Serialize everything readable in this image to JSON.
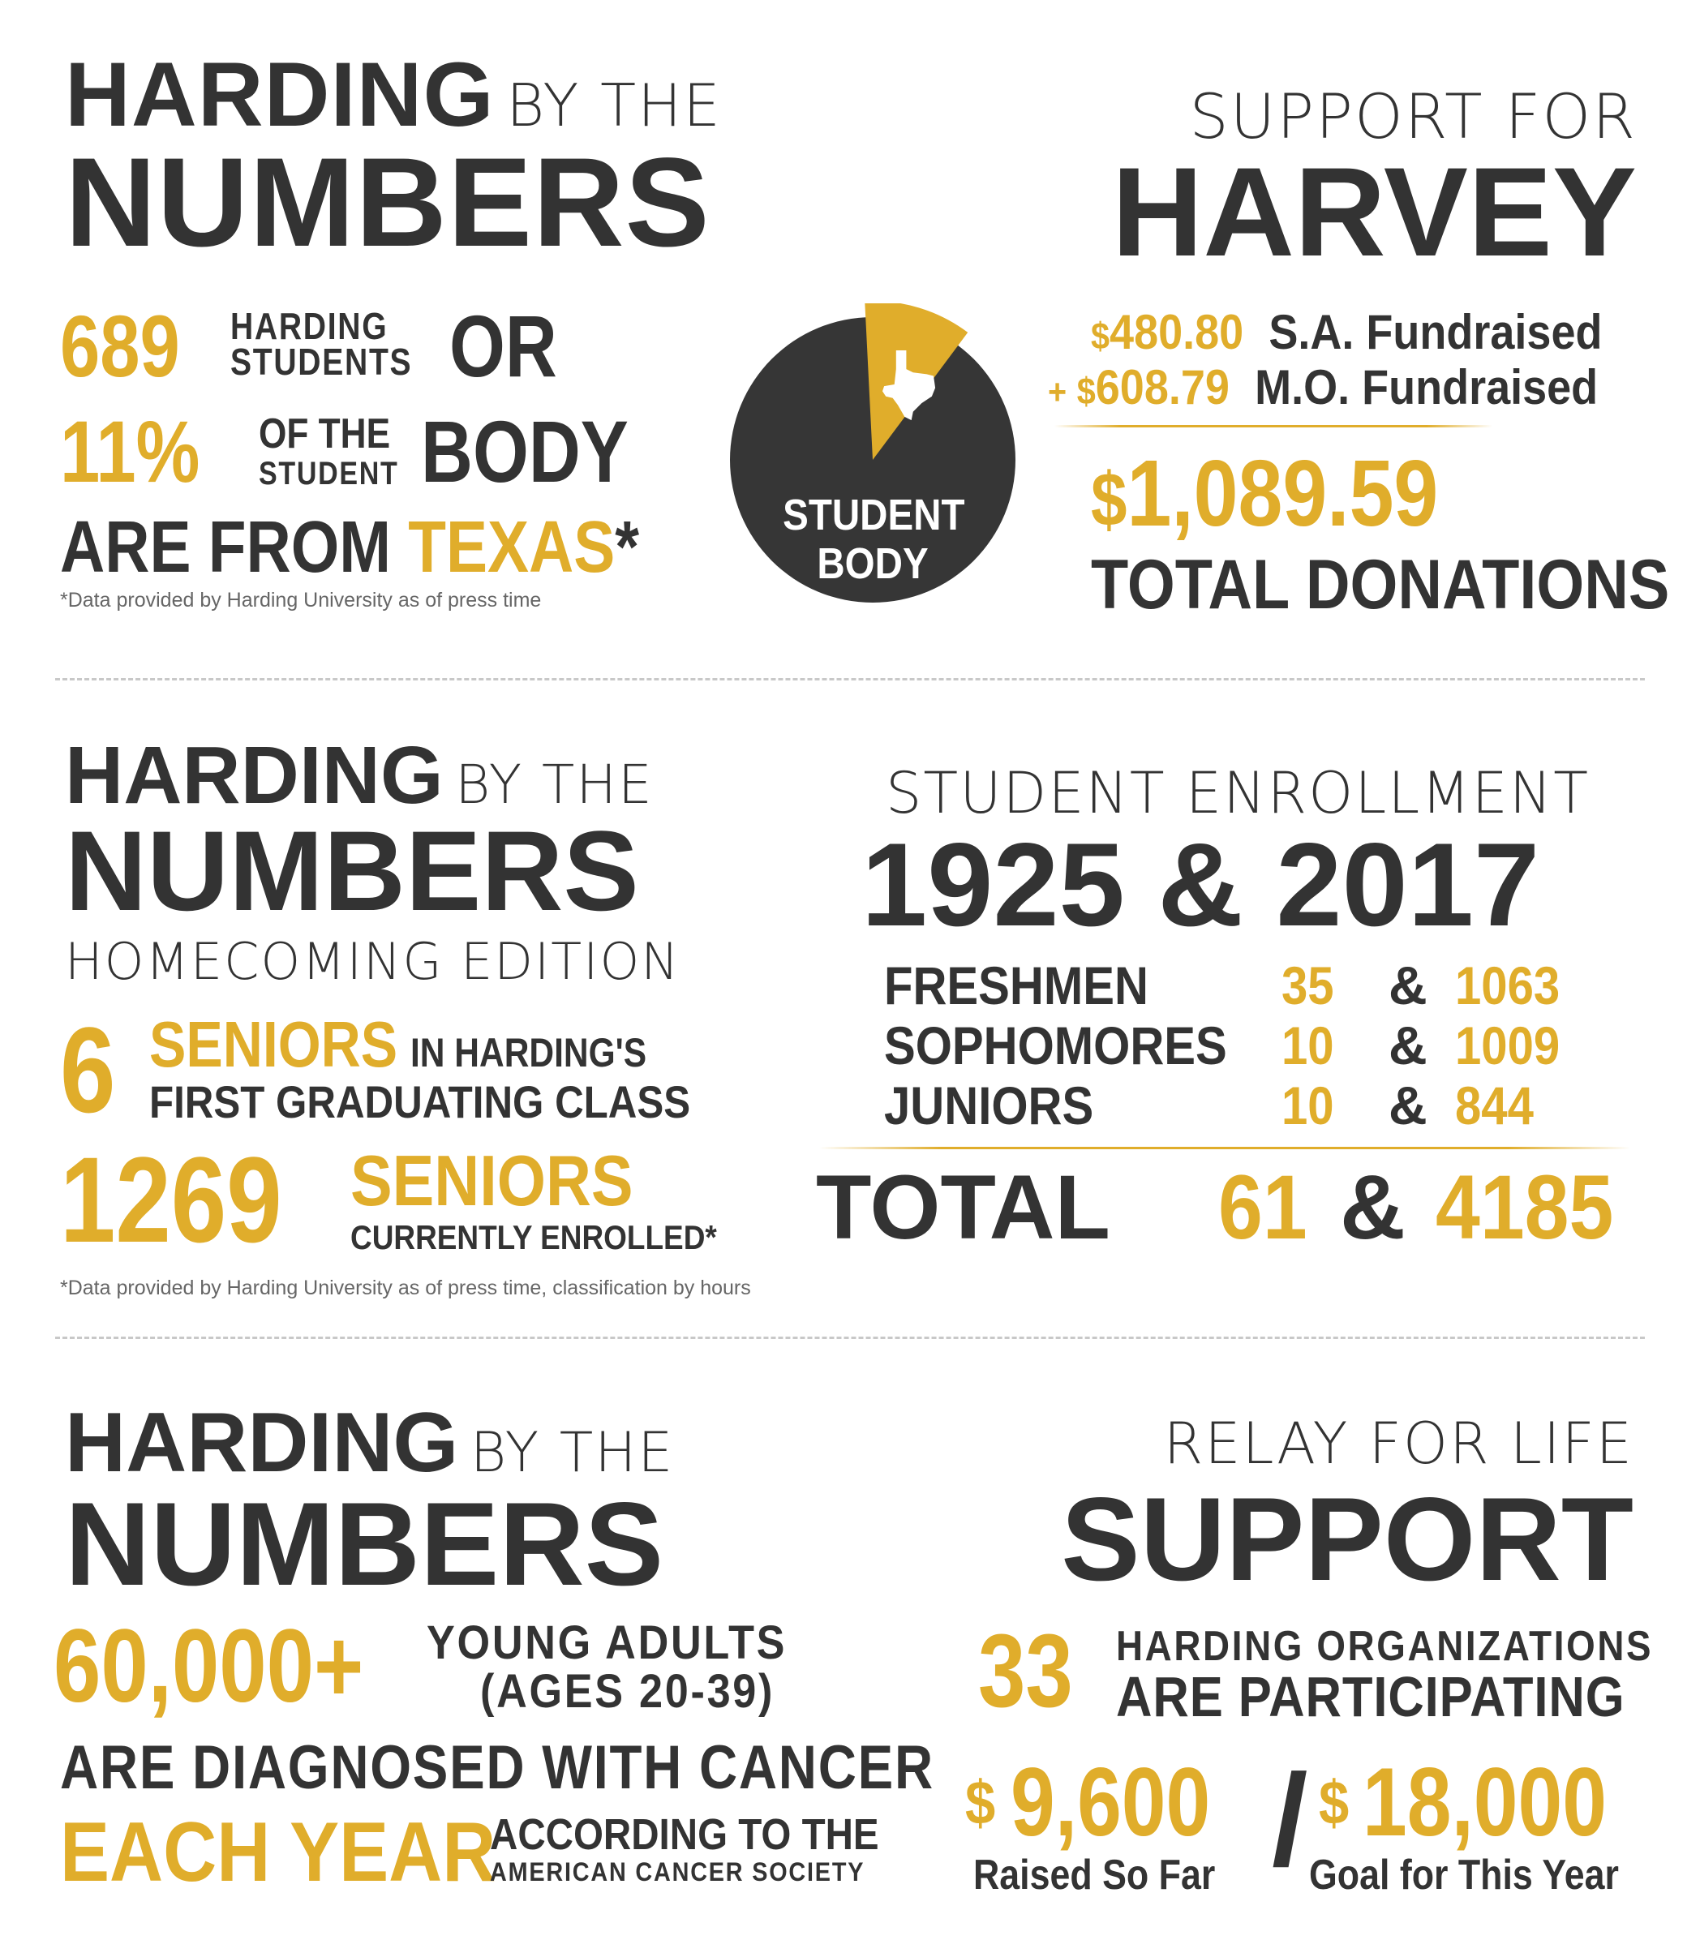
{
  "section1": {
    "left": {
      "title_bold": "HARDING",
      "title_light": "BY THE",
      "title_line2": "NUMBERS",
      "count": "689",
      "count_label_1": "HARDING",
      "count_label_2": "STUDENTS",
      "or": "OR",
      "percent": "11%",
      "percent_label_1": "OF THE",
      "percent_label_2": "STUDENT",
      "body": "BODY",
      "from_text": "ARE FROM",
      "texas": "TEXAS",
      "asterisk": "*",
      "footnote": "*Data provided by Harding University as of press time"
    },
    "pie": {
      "label_1": "STUDENT",
      "label_2": "BODY",
      "texas_share": 0.11,
      "colors": {
        "body": "#363636",
        "slice": "#e0ad2b"
      }
    },
    "right": {
      "title_light": "SUPPORT FOR",
      "title_bold": "HARVEY",
      "row1_dollar": "$",
      "row1_amount": "480.80",
      "row1_label": "S.A. Fundraised",
      "row2_plus": "+",
      "row2_dollar": "$",
      "row2_amount": "608.79",
      "row2_label": "M.O. Fundraised",
      "total_dollar": "$",
      "total_amount": "1,089.59",
      "total_label": "TOTAL DONATIONS"
    }
  },
  "section2": {
    "left": {
      "title_bold": "HARDING",
      "title_light": "BY THE",
      "title_line2": "NUMBERS",
      "edition": "HOMECOMING EDITION",
      "six": "6",
      "seniors_1": "SENIORS",
      "in_hardings": "IN HARDING'S",
      "first_class": "FIRST GRADUATING CLASS",
      "count": "1269",
      "seniors_2": "SENIORS",
      "currently": "CURRENTLY ENROLLED*",
      "footnote": "*Data provided by Harding University as of press time, classification by hours"
    },
    "right": {
      "title_light": "STUDENT ENROLLMENT",
      "years": "1925 & 2017",
      "rows": [
        {
          "label": "FRESHMEN",
          "v1925": "35",
          "amp": "&",
          "v2017": "1063"
        },
        {
          "label": "SOPHOMORES",
          "v1925": "10",
          "amp": "&",
          "v2017": "1009"
        },
        {
          "label": "JUNIORS",
          "v1925": "10",
          "amp": "&",
          "v2017": "844"
        }
      ],
      "total_label": "TOTAL",
      "total_1925": "61",
      "total_amp": "&",
      "total_2017": "4185"
    }
  },
  "section3": {
    "left": {
      "title_bold": "HARDING",
      "title_light": "BY THE",
      "title_line2": "NUMBERS",
      "count": "60,000+",
      "young_adults": "YOUNG ADULTS",
      "ages": "(AGES 20-39)",
      "diagnosed": "ARE DIAGNOSED WITH CANCER",
      "each_year": "EACH YEAR",
      "according": "ACCORDING TO THE",
      "society": "AMERICAN CANCER SOCIETY"
    },
    "right": {
      "title_light": "RELAY FOR LIFE",
      "title_bold": "SUPPORT",
      "orgs_count": "33",
      "orgs_1": "HARDING ORGANIZATIONS",
      "orgs_2": "ARE PARTICIPATING",
      "raised_dollar": "$",
      "raised_amount": "9,600",
      "raised_label": "Raised So Far",
      "slash": "/",
      "goal_dollar": "$",
      "goal_amount": "18,000",
      "goal_label": "Goal for This Year"
    }
  }
}
